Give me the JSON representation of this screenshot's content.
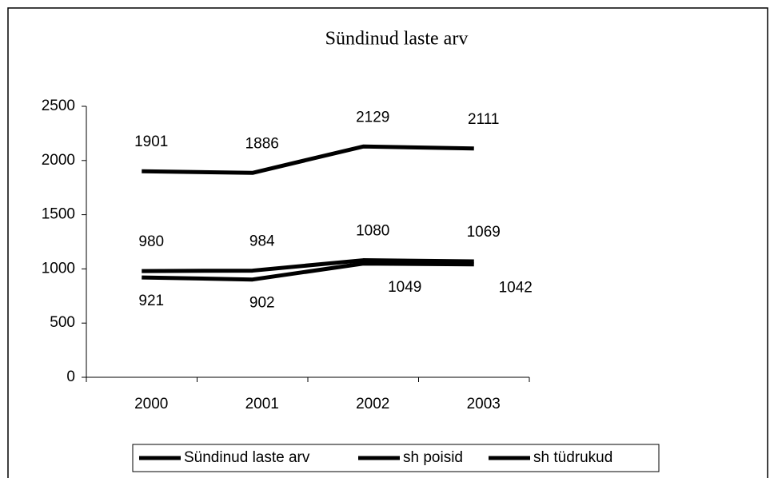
{
  "chart_data": {
    "type": "line",
    "title": "Sündinud laste arv",
    "categories": [
      "2000",
      "2001",
      "2002",
      "2003"
    ],
    "series": [
      {
        "name": "Sündinud laste arv",
        "color": "#000000",
        "values": [
          1901,
          1886,
          2129,
          2111
        ]
      },
      {
        "name": "sh poisid",
        "color": "#000000",
        "values": [
          980,
          984,
          1080,
          1069
        ]
      },
      {
        "name": "sh tüdrukud",
        "color": "#000000",
        "values": [
          921,
          902,
          1049,
          1042
        ]
      }
    ],
    "ylim": [
      0,
      2500
    ],
    "yticks": [
      0,
      500,
      1000,
      1500,
      2000,
      2500
    ],
    "grid": false,
    "legend": "bottom"
  }
}
